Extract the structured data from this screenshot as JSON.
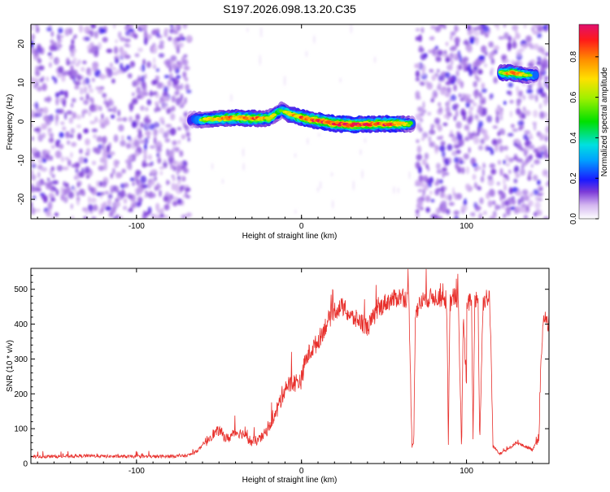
{
  "title": "S197.2026.098.13.20.C35",
  "colors": {
    "axis": "#000000",
    "snr_line": "#e8302c"
  },
  "chart_data": [
    {
      "type": "heatmap",
      "title": "S197.2026.098.13.20.C35",
      "xlabel": "Height of straight line (km)",
      "ylabel": "Frequency (Hz)",
      "xlim": [
        -164,
        150
      ],
      "ylim": [
        -25,
        25
      ],
      "xticks": [
        -100,
        0,
        100
      ],
      "yticks": [
        -20,
        -10,
        0,
        10,
        20
      ],
      "colorbar": {
        "label": "Normalized spectral amplitude",
        "range": [
          0,
          0.96
        ],
        "ticks": [
          0.0,
          0.2,
          0.4,
          0.6,
          0.8
        ]
      },
      "noise_regions_km": [
        [
          -164,
          -68
        ],
        [
          70,
          150
        ]
      ],
      "signal_track": {
        "x": [
          -68,
          -60,
          -50,
          -40,
          -30,
          -20,
          -12,
          -8,
          0,
          10,
          20,
          30,
          40,
          50,
          60,
          68,
          120,
          128,
          136,
          142
        ],
        "y": [
          0.5,
          0.5,
          0.8,
          1.0,
          0.8,
          0.8,
          3.0,
          2.0,
          1.0,
          0.2,
          -0.5,
          -0.8,
          -0.7,
          -0.6,
          -0.6,
          -0.6,
          12.5,
          12.5,
          12.0,
          12.0
        ],
        "amplitude": [
          0.3,
          0.6,
          0.75,
          0.8,
          0.85,
          0.7,
          0.5,
          0.7,
          0.85,
          0.9,
          0.95,
          0.96,
          0.9,
          0.9,
          0.85,
          0.4,
          0.6,
          0.85,
          0.6,
          0.5
        ]
      }
    },
    {
      "type": "line",
      "xlabel": "Height of straight line (km)",
      "ylabel": "SNR (10 * v/v)",
      "xlim": [
        -164,
        150
      ],
      "ylim": [
        0,
        560
      ],
      "xticks": [
        -100,
        0,
        100
      ],
      "yticks": [
        0,
        100,
        200,
        300,
        400,
        500
      ],
      "series": [
        {
          "name": "SNR",
          "x": [
            -164,
            -150,
            -130,
            -110,
            -90,
            -70,
            -65,
            -60,
            -55,
            -50,
            -45,
            -40,
            -35,
            -30,
            -25,
            -20,
            -15,
            -10,
            -5,
            0,
            2,
            5,
            10,
            15,
            20,
            25,
            30,
            35,
            40,
            45,
            50,
            55,
            60,
            65,
            67,
            68,
            69,
            72,
            75,
            80,
            88,
            89,
            90,
            92,
            95,
            100,
            97,
            98,
            100,
            103,
            104,
            105,
            107,
            108,
            110,
            112,
            114,
            115,
            116,
            120,
            125,
            130,
            135,
            140,
            144,
            145,
            147,
            150
          ],
          "y": [
            20,
            20,
            22,
            20,
            20,
            22,
            30,
            50,
            80,
            95,
            70,
            90,
            85,
            60,
            70,
            100,
            150,
            220,
            230,
            240,
            290,
            320,
            350,
            400,
            440,
            450,
            420,
            410,
            390,
            430,
            460,
            470,
            480,
            470,
            50,
            60,
            430,
            460,
            470,
            480,
            470,
            50,
            460,
            480,
            470,
            230,
            40,
            420,
            440,
            480,
            60,
            470,
            480,
            60,
            460,
            480,
            470,
            300,
            50,
            30,
            40,
            60,
            50,
            40,
            80,
            300,
            420,
            400
          ]
        }
      ]
    }
  ]
}
